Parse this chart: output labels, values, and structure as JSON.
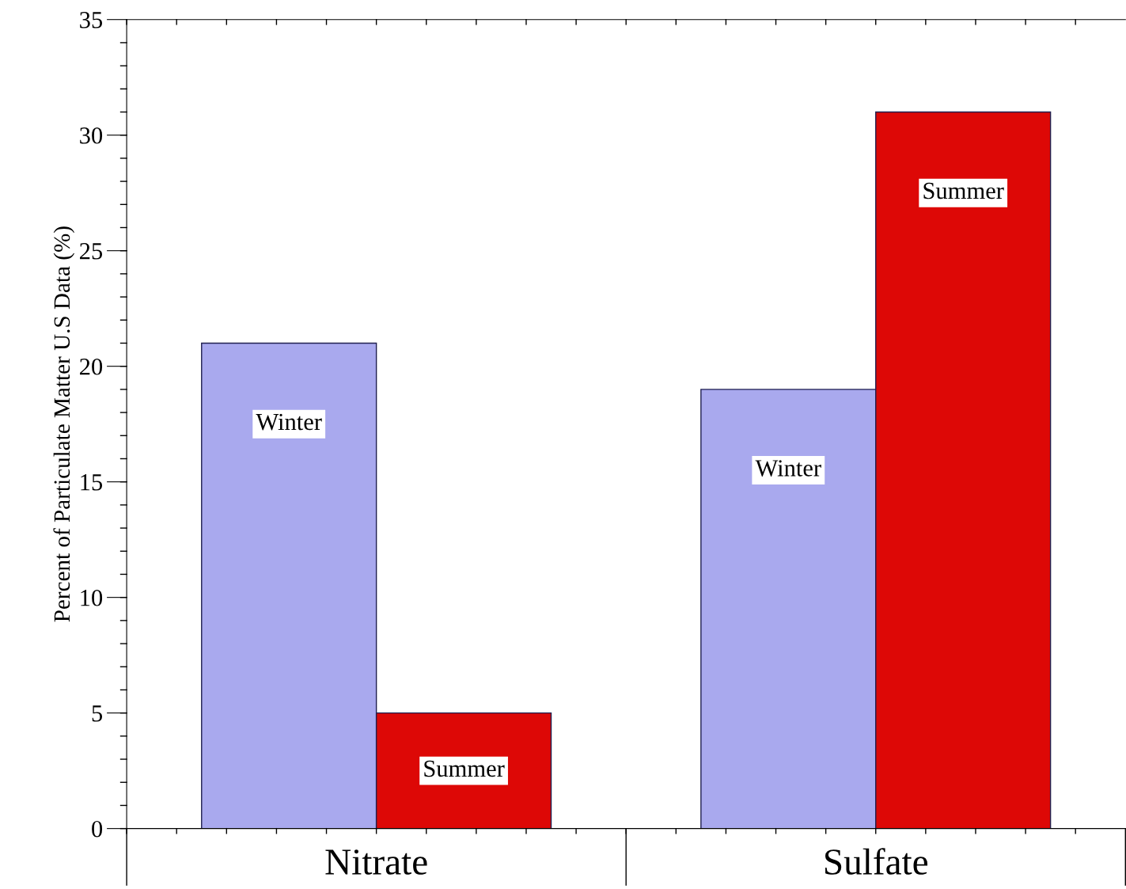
{
  "chart_data": {
    "type": "bar",
    "ylabel": "Percent of Particulate Matter U.S Data (%)",
    "categories": [
      "Nitrate",
      "Sulfate"
    ],
    "series": [
      {
        "name": "Winter",
        "color": "#a9a9ee",
        "values": [
          21,
          19
        ]
      },
      {
        "name": "Summer",
        "color": "#dd0806",
        "values": [
          5,
          31
        ]
      }
    ],
    "ylim": [
      0,
      35
    ],
    "yticks": [
      0,
      5,
      10,
      15,
      20,
      25,
      30,
      35
    ],
    "grid": false,
    "legend": false
  }
}
